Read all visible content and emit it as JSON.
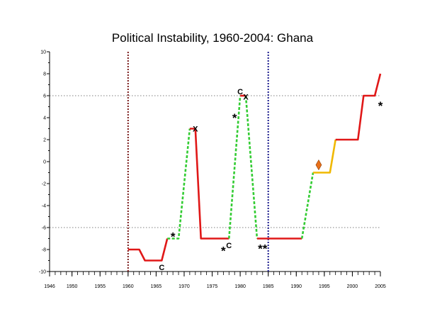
{
  "chart_data": {
    "type": "line",
    "title": "Political Instability, 1960-2004: Ghana",
    "xlim": [
      1946,
      2005
    ],
    "ylim": [
      -10,
      10
    ],
    "x_ticks": [
      1946,
      1950,
      1955,
      1960,
      1965,
      1970,
      1975,
      1980,
      1985,
      1990,
      1995,
      2000,
      2005
    ],
    "y_ticks": [
      -10,
      -8,
      -6,
      -4,
      -2,
      0,
      2,
      4,
      6,
      8,
      10
    ],
    "grid": false,
    "reference_lines": {
      "horizontal": [
        6,
        -6
      ],
      "vertical": [
        {
          "x": 1960,
          "color": "#7a1a1a"
        },
        {
          "x": 1985,
          "color": "#1a1a8c"
        }
      ]
    },
    "segment_colors": {
      "red": "#e01818",
      "green": "#33cc33",
      "yellow": "#f0b800"
    },
    "segments": [
      {
        "color": "red",
        "dashed": false,
        "points": [
          [
            1960,
            -8
          ],
          [
            1962,
            -8
          ],
          [
            1963,
            -9
          ],
          [
            1966,
            -9
          ],
          [
            1967,
            -7
          ]
        ]
      },
      {
        "color": "green",
        "dashed": true,
        "points": [
          [
            1967,
            -7
          ],
          [
            1969,
            -7
          ],
          [
            1971,
            3
          ]
        ]
      },
      {
        "color": "red",
        "dashed": false,
        "points": [
          [
            1971,
            3
          ],
          [
            1972,
            3
          ],
          [
            1973,
            -7
          ],
          [
            1978,
            -7
          ]
        ]
      },
      {
        "color": "green",
        "dashed": true,
        "points": [
          [
            1978,
            -7
          ],
          [
            1980,
            6
          ]
        ]
      },
      {
        "color": "red",
        "dashed": false,
        "points": [
          [
            1980,
            6
          ],
          [
            1981,
            6
          ]
        ]
      },
      {
        "color": "green",
        "dashed": true,
        "points": [
          [
            1981,
            6
          ],
          [
            1983,
            -7
          ]
        ]
      },
      {
        "color": "red",
        "dashed": false,
        "points": [
          [
            1983,
            -7
          ],
          [
            1991,
            -7
          ]
        ]
      },
      {
        "color": "green",
        "dashed": true,
        "points": [
          [
            1991,
            -7
          ],
          [
            1993,
            -1
          ]
        ]
      },
      {
        "color": "yellow",
        "dashed": false,
        "points": [
          [
            1993,
            -1
          ],
          [
            1996,
            -1
          ],
          [
            1997,
            2
          ]
        ]
      },
      {
        "color": "red",
        "dashed": false,
        "points": [
          [
            1997,
            2
          ],
          [
            2001,
            2
          ],
          [
            2002,
            6
          ],
          [
            2004,
            6
          ],
          [
            2005,
            8
          ]
        ]
      }
    ],
    "annotations": [
      {
        "text": "C",
        "x": 1966,
        "y": -9.6
      },
      {
        "text": "*",
        "x": 1968,
        "y": -6.6
      },
      {
        "text": "X",
        "x": 1972,
        "y": 3
      },
      {
        "text": "*",
        "x": 1977,
        "y": -7.9
      },
      {
        "text": "C",
        "x": 1978,
        "y": -7.6
      },
      {
        "text": "*",
        "x": 1979,
        "y": 4.2
      },
      {
        "text": "C",
        "x": 1980,
        "y": 6.4
      },
      {
        "text": "X",
        "x": 1981,
        "y": 5.9
      },
      {
        "text": "**",
        "x": 1984,
        "y": -7.7
      },
      {
        "text": "*",
        "x": 2005,
        "y": 5.3
      }
    ],
    "markers": [
      {
        "shape": "diamond",
        "x": 1994,
        "y": -0.3,
        "color": "#e8701a"
      }
    ]
  }
}
